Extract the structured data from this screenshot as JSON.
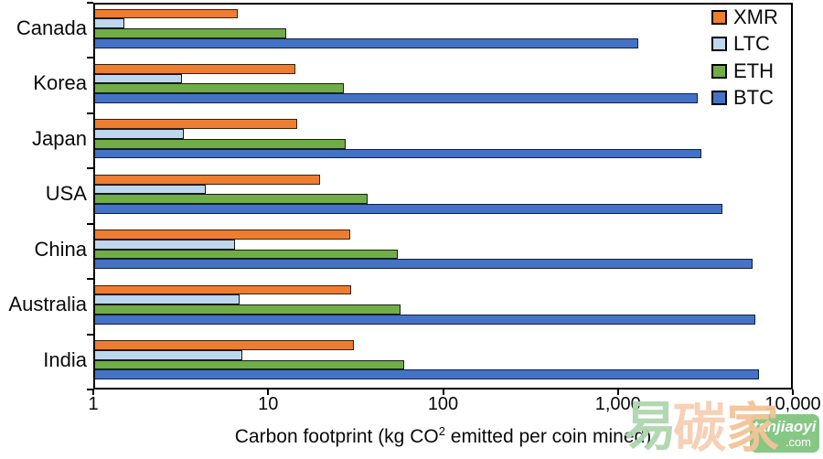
{
  "chart_data": {
    "type": "bar",
    "orientation": "horizontal",
    "x_scale": "log",
    "xlim": [
      1,
      10000
    ],
    "grid": false,
    "legend_position": "top-right-inside",
    "x_ticks": [
      {
        "label": "1",
        "value": 1
      },
      {
        "label": "10",
        "value": 10
      },
      {
        "label": "100",
        "value": 100
      },
      {
        "label": "1,000",
        "value": 1000
      },
      {
        "label": "10,000",
        "value": 10000
      }
    ],
    "xlabel_prefix": "Carbon footprint (kg CO",
    "xlabel_sup": "2",
    "xlabel_suffix": " emitted per coin mined)",
    "categories": [
      "Canada",
      "Korea",
      "Japan",
      "USA",
      "China",
      "Australia",
      "India"
    ],
    "bar_order_top_to_bottom": [
      "XMR",
      "LTC",
      "ETH",
      "BTC"
    ],
    "series": [
      {
        "name": "XMR",
        "color": "#ED7D31",
        "border": "#3a2008",
        "values": [
          6.7,
          14.3,
          14.7,
          19.8,
          29.5,
          30,
          31
        ]
      },
      {
        "name": "LTC",
        "color": "#BDD7EE",
        "border": "#141421",
        "values": [
          1.5,
          3.2,
          3.3,
          4.4,
          6.5,
          6.9,
          7.1
        ]
      },
      {
        "name": "ETH",
        "color": "#70AD47",
        "border": "#142010",
        "values": [
          12.7,
          27,
          27.7,
          37,
          55,
          57,
          60
        ]
      },
      {
        "name": "BTC",
        "color": "#4472C4",
        "border": "#101f47",
        "values": [
          1300,
          2850,
          3000,
          3950,
          5900,
          6100,
          6400
        ]
      }
    ]
  },
  "watermark": {
    "char1": "易",
    "char2": "碳",
    "char3": "家",
    "badge_line1": "tanjiaoyi",
    "badge_line2": ".com",
    "colors": {
      "char1": "#aed6ae",
      "char2": "#f6cfb4",
      "char3": "#f3c498",
      "badge_bg": "#86c786",
      "badge_text": "#ffffff"
    }
  }
}
